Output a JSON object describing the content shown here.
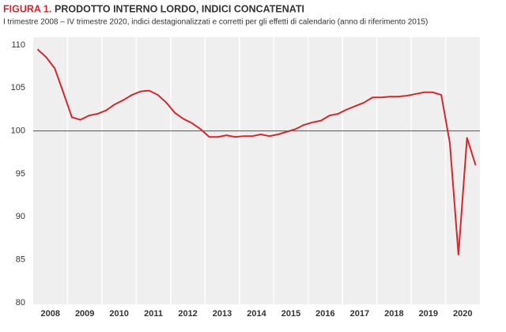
{
  "chart_data": {
    "type": "line",
    "title_label": "FIGURA 1.",
    "title": "PRODOTTO INTERNO LORDO, INDICI CONCATENATI",
    "subtitle": "I trimestre 2008 – IV trimestre 2020, indici destagionalizzati e corretti per gli effetti di calendario (anno di riferimento 2015)",
    "categories": [
      "2008",
      null,
      null,
      null,
      "2009",
      null,
      null,
      null,
      "2010",
      null,
      null,
      null,
      "2011",
      null,
      null,
      null,
      "2012",
      null,
      null,
      null,
      "2013",
      null,
      null,
      null,
      "2014",
      null,
      null,
      null,
      "2015",
      null,
      null,
      null,
      "2016",
      null,
      null,
      null,
      "2017",
      null,
      null,
      null,
      "2018",
      null,
      null,
      null,
      "2019",
      null,
      null,
      null,
      "2020",
      null,
      null,
      null
    ],
    "values": [
      109.5,
      108.6,
      107.3,
      104.5,
      101.6,
      101.3,
      101.8,
      102.0,
      102.4,
      103.1,
      103.6,
      104.2,
      104.6,
      104.7,
      104.2,
      103.3,
      102.1,
      101.4,
      100.9,
      100.2,
      99.3,
      99.3,
      99.5,
      99.3,
      99.4,
      99.4,
      99.6,
      99.4,
      99.6,
      99.9,
      100.2,
      100.7,
      101.0,
      101.2,
      101.8,
      102.0,
      102.5,
      102.9,
      103.3,
      103.9,
      103.9,
      104.0,
      104.0,
      104.1,
      104.3,
      104.5,
      104.5,
      104.2,
      98.6,
      85.6,
      99.2,
      96.0
    ],
    "color": "#d7262e",
    "ylim": [
      80,
      110
    ],
    "yticks": [
      80,
      85,
      90,
      95,
      100,
      105,
      110
    ],
    "reference_line": 100
  }
}
